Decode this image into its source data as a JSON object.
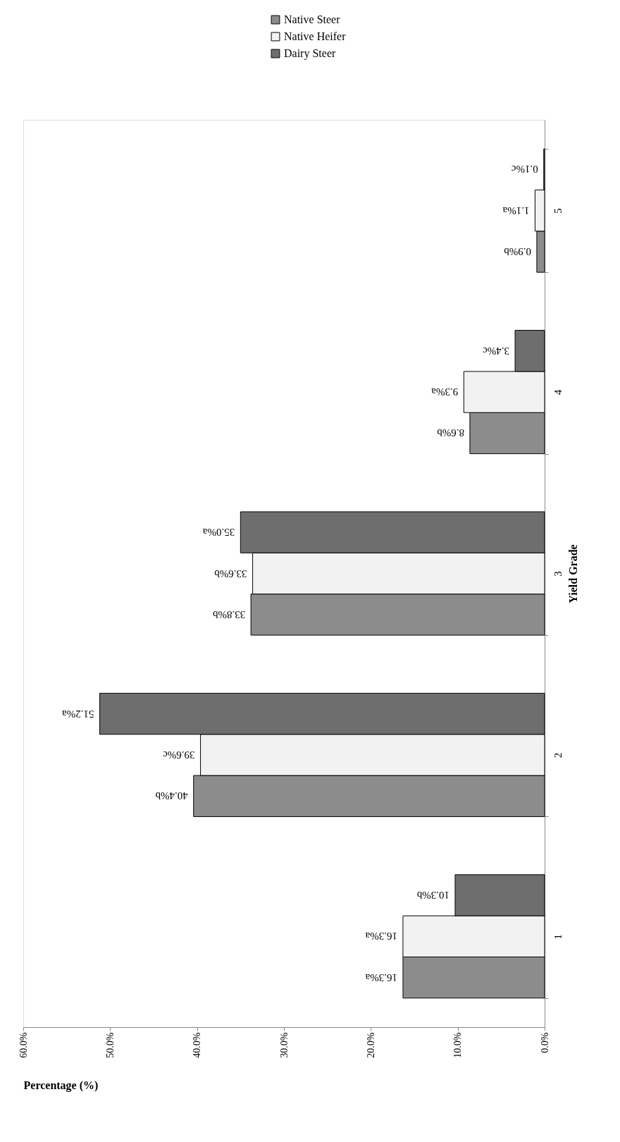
{
  "chart_data": {
    "type": "bar",
    "orientation": "horizontal",
    "xlabel": "Percentage (%)",
    "ylabel": "Yield Grade",
    "categories": [
      "5",
      "4",
      "3",
      "2",
      "1"
    ],
    "series": [
      {
        "name": "Native Steer",
        "color": "#8c8c8c",
        "values": [
          0.9,
          8.6,
          33.8,
          40.4,
          16.3
        ],
        "value_labels": [
          "0.9%b",
          "8.6%b",
          "33.8%b",
          "40.4%b",
          "16.3%a"
        ]
      },
      {
        "name": "Native Heifer",
        "color": "#f2f2f2",
        "values": [
          1.1,
          9.3,
          33.6,
          39.6,
          16.3
        ],
        "value_labels": [
          "1.1%a",
          "9.3%a",
          "33.6%b",
          "39.6%c",
          "16.3%a"
        ]
      },
      {
        "name": "Dairy Steer",
        "color": "#6e6e6e",
        "values": [
          0.1,
          3.4,
          35.0,
          51.2,
          10.3
        ],
        "value_labels": [
          "0.1%c",
          "3.4%c",
          "35.0%a",
          "51.2%a",
          "10.3%b"
        ]
      }
    ],
    "xlim": [
      60,
      0
    ],
    "xticks": [
      {
        "value": 60,
        "label": "60.0%"
      },
      {
        "value": 50,
        "label": "50.0%"
      },
      {
        "value": 40,
        "label": "40.0%"
      },
      {
        "value": 30,
        "label": "30.0%"
      },
      {
        "value": 20,
        "label": "20.0%"
      },
      {
        "value": 10,
        "label": "10.0%"
      },
      {
        "value": 0,
        "label": "0.0%"
      }
    ],
    "legend": "top right"
  }
}
